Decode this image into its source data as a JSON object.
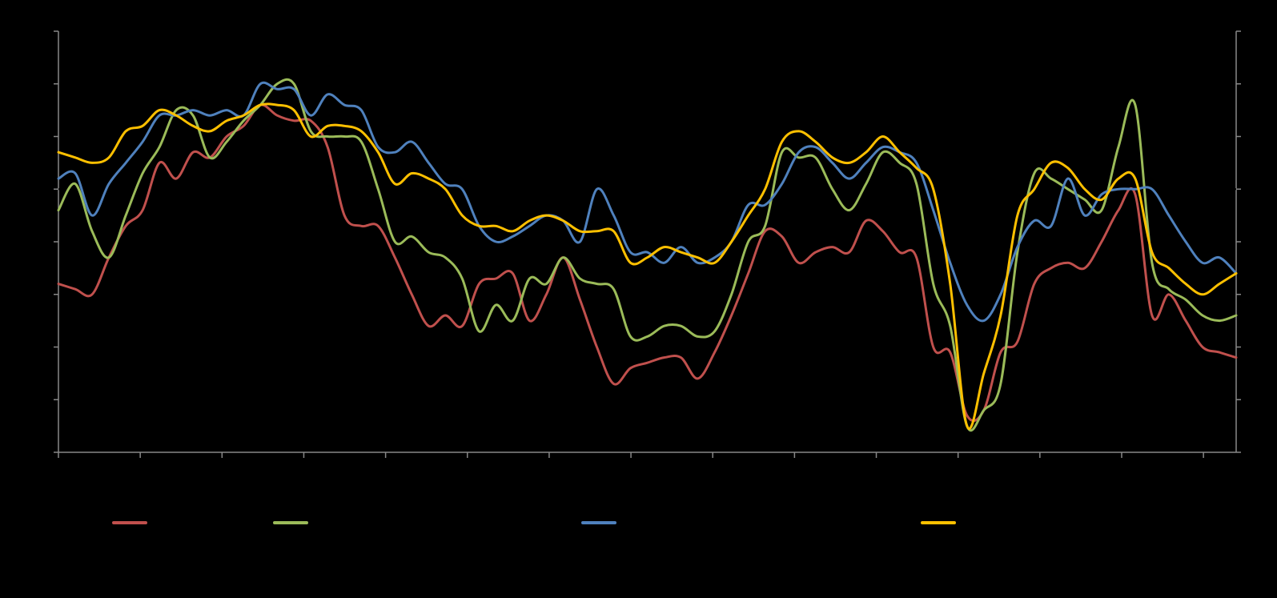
{
  "chart_data": {
    "type": "line",
    "title": "",
    "xlabel": "",
    "ylabel": "",
    "y2label": "",
    "grid": false,
    "legend_position": "bottom",
    "x_range": [
      0,
      280
    ],
    "ylim": [
      0,
      8
    ],
    "y_tick_count": 9,
    "x_tick_count": 15,
    "reference_line": {
      "y": 5
    },
    "colors": {
      "background": "#000000",
      "axis": "#888888",
      "reference_line": "#000000"
    },
    "x": [
      0,
      4,
      8,
      12,
      16,
      20,
      24,
      28,
      32,
      36,
      40,
      44,
      48,
      52,
      56,
      60,
      64,
      68,
      72,
      76,
      80,
      84,
      88,
      92,
      96,
      100,
      104,
      108,
      112,
      116,
      120,
      124,
      128,
      132,
      136,
      140,
      144,
      148,
      152,
      156,
      160,
      164,
      168,
      172,
      176,
      180,
      184,
      188,
      192,
      196,
      200,
      204,
      208,
      212,
      216,
      220,
      224,
      228,
      232,
      236,
      240,
      244,
      248,
      252,
      256,
      260,
      264,
      268,
      272,
      276,
      280
    ],
    "series": [
      {
        "name": "",
        "color": "#c0504d",
        "values": [
          3.2,
          3.1,
          3.0,
          3.7,
          4.3,
          4.6,
          5.5,
          5.2,
          5.7,
          5.6,
          6.0,
          6.2,
          6.6,
          6.4,
          6.3,
          6.3,
          5.8,
          4.5,
          4.3,
          4.3,
          3.7,
          3.0,
          2.4,
          2.6,
          2.4,
          3.2,
          3.3,
          3.4,
          2.5,
          3.0,
          3.7,
          2.9,
          2.0,
          1.3,
          1.6,
          1.7,
          1.8,
          1.8,
          1.4,
          1.9,
          2.6,
          3.4,
          4.2,
          4.1,
          3.6,
          3.8,
          3.9,
          3.8,
          4.4,
          4.2,
          3.8,
          3.7,
          2.0,
          1.9,
          0.7,
          0.8,
          1.9,
          2.1,
          3.2,
          3.5,
          3.6,
          3.5,
          4.0,
          4.6,
          4.9,
          2.6,
          3.0,
          2.5,
          2.0,
          1.9,
          1.8
        ]
      },
      {
        "name": "",
        "color": "#9bbb59",
        "values": [
          4.6,
          5.1,
          4.2,
          3.7,
          4.5,
          5.3,
          5.8,
          6.5,
          6.4,
          5.6,
          5.9,
          6.3,
          6.6,
          7.0,
          7.0,
          6.1,
          6.0,
          6.0,
          5.9,
          5.0,
          4.0,
          4.1,
          3.8,
          3.7,
          3.3,
          2.3,
          2.8,
          2.5,
          3.3,
          3.2,
          3.7,
          3.3,
          3.2,
          3.1,
          2.2,
          2.2,
          2.4,
          2.4,
          2.2,
          2.3,
          3.0,
          4.0,
          4.3,
          5.7,
          5.6,
          5.6,
          5.0,
          4.6,
          5.1,
          5.7,
          5.5,
          5.1,
          3.2,
          2.4,
          0.5,
          0.8,
          1.3,
          3.8,
          5.3,
          5.2,
          5.0,
          4.8,
          4.6,
          5.8,
          6.6,
          3.6,
          3.1,
          2.9,
          2.6,
          2.5,
          2.6
        ]
      },
      {
        "name": "",
        "color": "#4f81bd",
        "values": [
          5.2,
          5.3,
          4.5,
          5.1,
          5.5,
          5.9,
          6.4,
          6.4,
          6.5,
          6.4,
          6.5,
          6.4,
          7.0,
          6.9,
          6.9,
          6.4,
          6.8,
          6.6,
          6.5,
          5.8,
          5.7,
          5.9,
          5.5,
          5.1,
          5.0,
          4.3,
          4.0,
          4.1,
          4.3,
          4.5,
          4.4,
          4.0,
          5.0,
          4.5,
          3.8,
          3.8,
          3.6,
          3.9,
          3.6,
          3.7,
          4.0,
          4.7,
          4.7,
          5.1,
          5.7,
          5.8,
          5.5,
          5.2,
          5.5,
          5.8,
          5.7,
          5.5,
          4.6,
          3.6,
          2.8,
          2.5,
          3.0,
          3.9,
          4.4,
          4.3,
          5.2,
          4.5,
          4.9,
          5.0,
          5.0,
          5.0,
          4.5,
          4.0,
          3.6,
          3.7,
          3.4
        ]
      },
      {
        "name": "",
        "color": "#ffc000",
        "values": [
          5.7,
          5.6,
          5.5,
          5.6,
          6.1,
          6.2,
          6.5,
          6.4,
          6.2,
          6.1,
          6.3,
          6.4,
          6.6,
          6.6,
          6.5,
          6.0,
          6.2,
          6.2,
          6.1,
          5.7,
          5.1,
          5.3,
          5.2,
          5.0,
          4.5,
          4.3,
          4.3,
          4.2,
          4.4,
          4.5,
          4.4,
          4.2,
          4.2,
          4.2,
          3.6,
          3.7,
          3.9,
          3.8,
          3.7,
          3.6,
          4.0,
          4.5,
          5.0,
          5.9,
          6.1,
          5.9,
          5.6,
          5.5,
          5.7,
          6.0,
          5.7,
          5.4,
          5.0,
          3.2,
          0.5,
          1.5,
          2.6,
          4.5,
          5.0,
          5.5,
          5.4,
          5.0,
          4.8,
          5.2,
          5.2,
          3.8,
          3.5,
          3.2,
          3.0,
          3.2,
          3.4
        ]
      }
    ]
  },
  "legend": [
    {
      "label": "",
      "color": "#c0504d"
    },
    {
      "label": "",
      "color": "#9bbb59"
    },
    {
      "label": "",
      "color": "#4f81bd"
    },
    {
      "label": "",
      "color": "#ffc000"
    }
  ]
}
